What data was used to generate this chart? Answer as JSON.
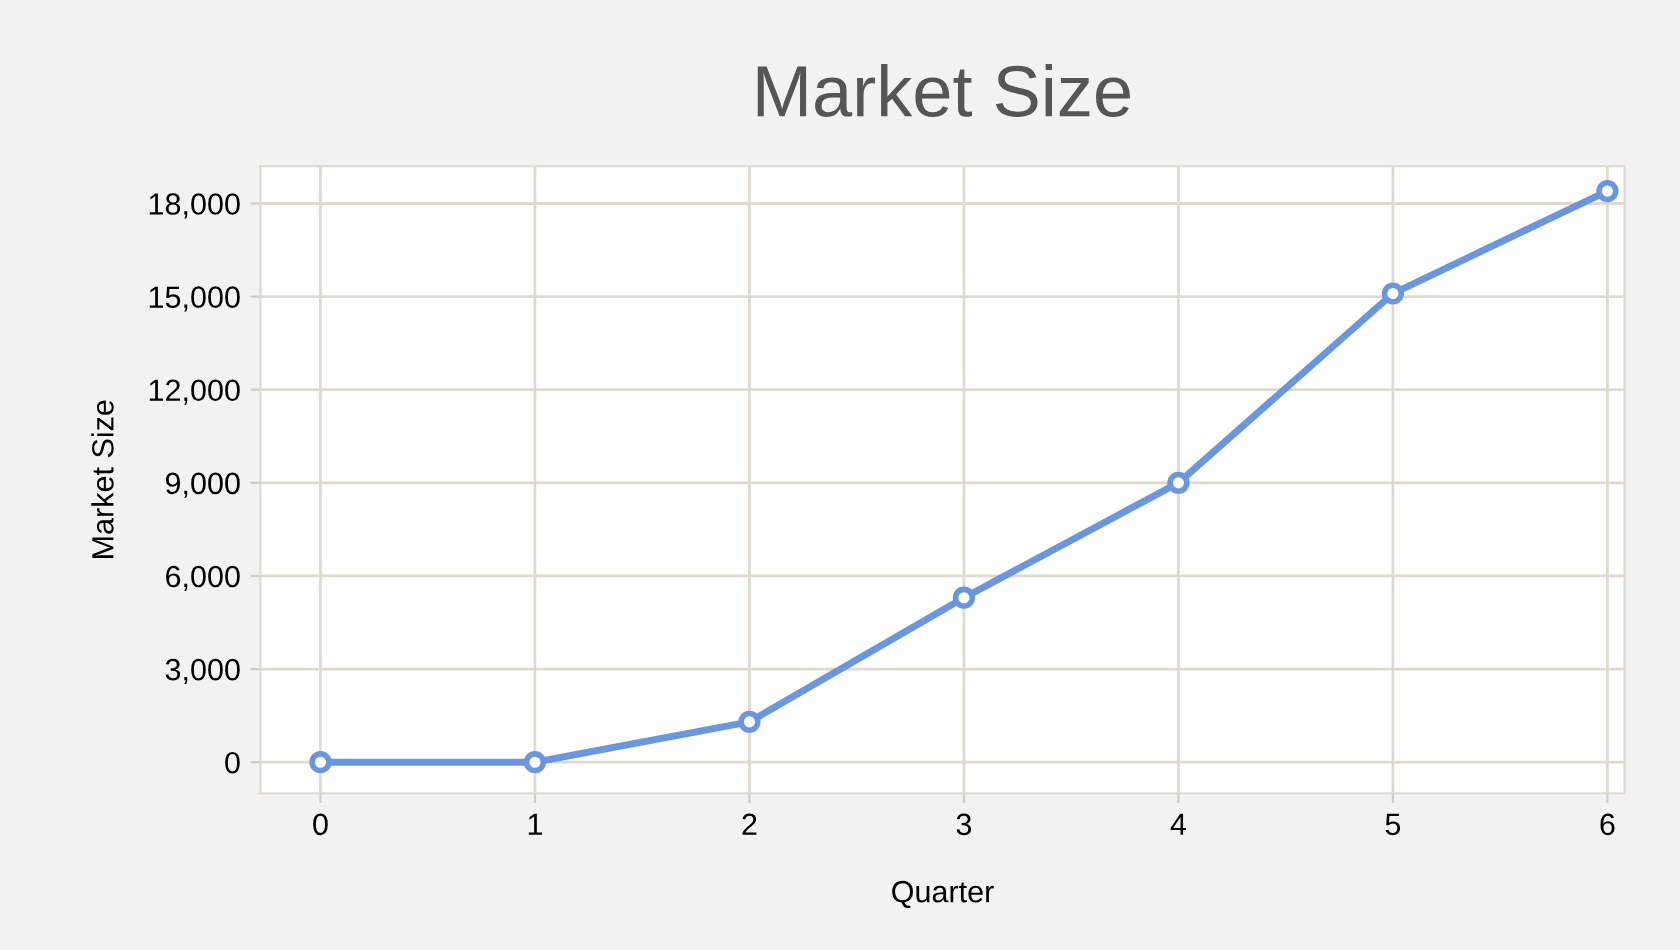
{
  "chart_data": {
    "type": "line",
    "title": "Market Size",
    "xlabel": "Quarter",
    "ylabel": "Market Size",
    "x": [
      0,
      1,
      2,
      3,
      4,
      5,
      6
    ],
    "series": [
      {
        "color": "#6a96e0",
        "values": [
          0,
          0,
          1300,
          5300,
          9000,
          15100,
          18400
        ]
      }
    ],
    "xlim": [
      -0.28,
      6.08
    ],
    "xticks": [
      0,
      1,
      2,
      3,
      4,
      5,
      6
    ],
    "ylim": [
      -1000,
      19200
    ],
    "yticks": [
      {
        "value": 0,
        "label": "0"
      },
      {
        "value": 3000,
        "label": "3,000"
      },
      {
        "value": 6000,
        "label": "6,000"
      },
      {
        "value": 9000,
        "label": "9,000"
      },
      {
        "value": 12000,
        "label": "12,000"
      },
      {
        "value": 15000,
        "label": "15,000"
      },
      {
        "value": 18000,
        "label": "18,000"
      }
    ],
    "grid": true,
    "legend": false,
    "marker": "circle",
    "line_style": "solid"
  }
}
